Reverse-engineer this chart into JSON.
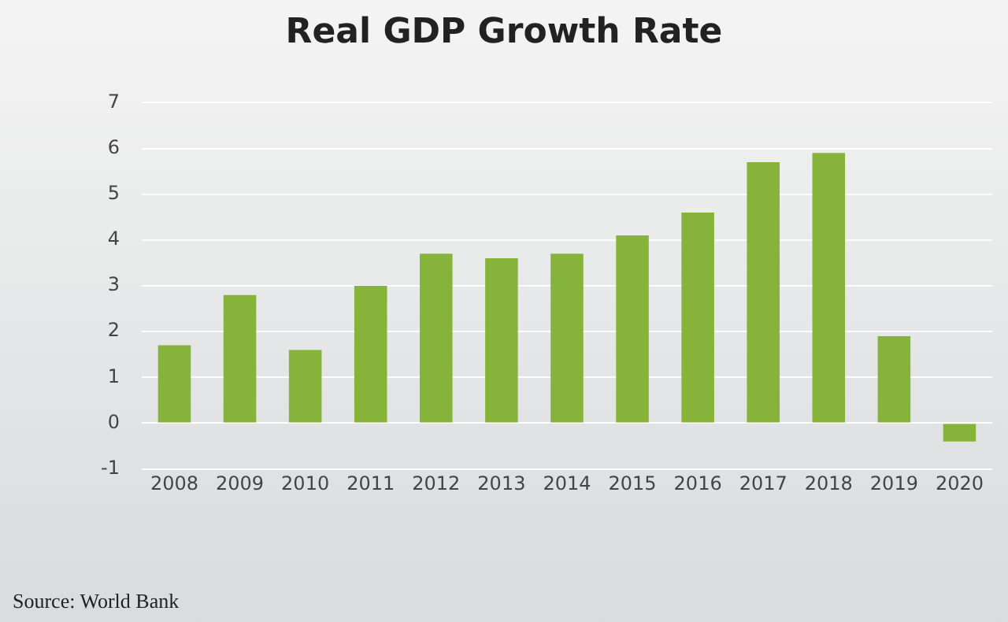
{
  "chart_data": {
    "type": "bar",
    "title": "Real GDP Growth Rate",
    "categories": [
      "2008",
      "2009",
      "2010",
      "2011",
      "2012",
      "2013",
      "2014",
      "2015",
      "2016",
      "2017",
      "2018",
      "2019",
      "2020"
    ],
    "values": [
      1.7,
      2.8,
      1.6,
      3.0,
      3.7,
      3.6,
      3.7,
      4.1,
      4.6,
      5.7,
      5.9,
      1.9,
      -0.4
    ],
    "color": "#86b33a",
    "ylim": [
      -1,
      7
    ],
    "yticks": [
      -1,
      0,
      1,
      2,
      3,
      4,
      5,
      6,
      7
    ],
    "grid": "y",
    "annotations": [
      "Source: World Bank"
    ]
  }
}
